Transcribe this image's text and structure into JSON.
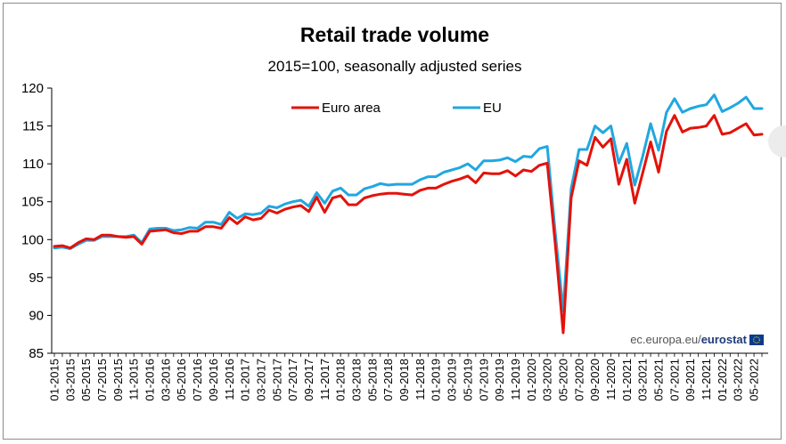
{
  "chart_data": {
    "type": "line",
    "title": "Retail trade volume",
    "subtitle": "2015=100, seasonally adjusted series",
    "ylim": [
      85,
      120
    ],
    "yticks": [
      85,
      90,
      95,
      100,
      105,
      110,
      115,
      120
    ],
    "x_tick_labels": [
      "01-2015",
      "03-2015",
      "05-2015",
      "07-2015",
      "09-2015",
      "11-2015",
      "01-2016",
      "03-2016",
      "05-2016",
      "07-2016",
      "09-2016",
      "11-2016",
      "01-2017",
      "03-2017",
      "05-2017",
      "07-2017",
      "09-2017",
      "11-2017",
      "01-2018",
      "03-2018",
      "05-2018",
      "07-2018",
      "09-2018",
      "11-2018",
      "01-2019",
      "03-2019",
      "05-2019",
      "07-2019",
      "09-2019",
      "11-2019",
      "01-2020",
      "03-2020",
      "05-2020",
      "07-2020",
      "09-2020",
      "11-2020",
      "01-2021",
      "03-2021",
      "05-2021",
      "07-2021",
      "09-2021",
      "11-2021",
      "01-2022",
      "03-2022",
      "05-2022"
    ],
    "x_start": "01-2015",
    "x_end": "06-2022",
    "legend_position": "top",
    "grid": false,
    "series": [
      {
        "name": "Euro area",
        "color": "#e3120b",
        "values": [
          99.1,
          99.2,
          98.9,
          99.6,
          100.1,
          100.0,
          100.6,
          100.6,
          100.4,
          100.3,
          100.4,
          99.4,
          101.1,
          101.2,
          101.3,
          100.9,
          100.8,
          101.1,
          101.1,
          101.7,
          101.7,
          101.5,
          102.9,
          102.1,
          103.0,
          102.6,
          102.8,
          103.9,
          103.5,
          104.0,
          104.3,
          104.5,
          103.7,
          105.6,
          103.6,
          105.5,
          105.8,
          104.6,
          104.6,
          105.5,
          105.8,
          106.0,
          106.1,
          106.1,
          106.0,
          105.9,
          106.5,
          106.8,
          106.8,
          107.3,
          107.7,
          108.0,
          108.4,
          107.5,
          108.8,
          108.7,
          108.7,
          109.1,
          108.4,
          109.2,
          109.0,
          109.8,
          110.1,
          99.5,
          87.7,
          105.5,
          110.4,
          109.8,
          113.5,
          112.2,
          113.3,
          107.3,
          110.6,
          104.8,
          108.8,
          112.9,
          108.9,
          114.3,
          116.4,
          114.2,
          114.7,
          114.8,
          115.0,
          116.4,
          113.9,
          114.1,
          114.7,
          115.3,
          113.8,
          113.9
        ],
        "last_value": 113.9
      },
      {
        "name": "EU",
        "color": "#21a7e0",
        "values": [
          98.9,
          99.0,
          98.8,
          99.4,
          99.9,
          99.9,
          100.4,
          100.4,
          100.4,
          100.4,
          100.6,
          99.6,
          101.4,
          101.5,
          101.5,
          101.2,
          101.3,
          101.6,
          101.5,
          102.3,
          102.3,
          102.0,
          103.6,
          102.8,
          103.4,
          103.3,
          103.5,
          104.4,
          104.2,
          104.7,
          105.0,
          105.2,
          104.4,
          106.2,
          104.8,
          106.4,
          106.8,
          105.9,
          105.9,
          106.7,
          107.0,
          107.4,
          107.2,
          107.3,
          107.3,
          107.3,
          107.9,
          108.3,
          108.3,
          108.9,
          109.2,
          109.5,
          110.0,
          109.2,
          110.4,
          110.4,
          110.5,
          110.8,
          110.3,
          111.0,
          110.9,
          112.0,
          112.3,
          101.0,
          90.6,
          106.7,
          111.9,
          111.9,
          115.0,
          114.1,
          115.0,
          110.1,
          112.7,
          107.2,
          111.0,
          115.3,
          111.8,
          116.8,
          118.6,
          116.8,
          117.3,
          117.6,
          117.8,
          119.1,
          116.9,
          117.4,
          118.0,
          118.8,
          117.3,
          117.3
        ],
        "last_value": 117.3
      }
    ]
  },
  "credit": {
    "prefix": "ec.europa.eu/",
    "brand": "eurostat",
    "flag_color": "#0a3b8c",
    "star_color": "#f2d200"
  }
}
